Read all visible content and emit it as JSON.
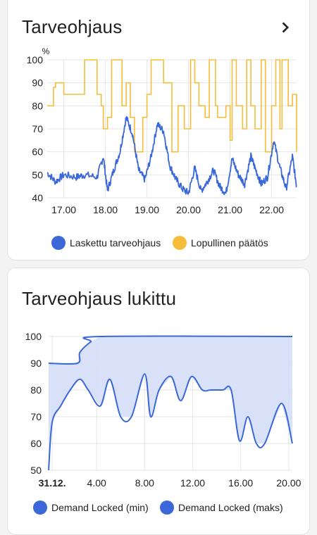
{
  "card1": {
    "title": "Tarveohjaus",
    "legend": [
      {
        "label": "Laskettu tarveohjaus",
        "color": "#3b68d9"
      },
      {
        "label": "Lopullinen päätös",
        "color": "#f5bd3a"
      }
    ]
  },
  "card2": {
    "title": "Tarveohjaus lukittu",
    "legend": [
      {
        "label": "Demand Locked (min)",
        "color": "#3b68d9"
      },
      {
        "label": "Demand Locked (maks)",
        "color": "#3b68d9"
      }
    ]
  },
  "chart_data": [
    {
      "type": "line",
      "title": "Tarveohjaus",
      "ylabel": "%",
      "ylim": [
        40,
        100
      ],
      "yticks": [
        "100",
        "90",
        "80",
        "70",
        "60",
        "50",
        "40"
      ],
      "xticks": [
        "17.00",
        "18.00",
        "19.00",
        "20.00",
        "21.00",
        "22.00"
      ],
      "grid": true,
      "legend_position": "bottom",
      "series": [
        {
          "name": "Laskettu tarveohjaus",
          "color": "#3b68d9",
          "x": [
            16.6,
            16.8,
            17.0,
            17.3,
            17.5,
            17.8,
            17.95,
            18.05,
            18.2,
            18.35,
            18.5,
            18.65,
            18.8,
            18.95,
            19.1,
            19.25,
            19.4,
            19.55,
            19.7,
            19.85,
            20.0,
            20.15,
            20.3,
            20.45,
            20.6,
            20.75,
            20.9,
            21.05,
            21.2,
            21.35,
            21.5,
            21.6,
            21.75,
            21.9,
            22.05,
            22.2,
            22.35,
            22.5,
            22.6
          ],
          "y": [
            51,
            47,
            50,
            49,
            50,
            49,
            58,
            43,
            52,
            60,
            75,
            68,
            52,
            48,
            58,
            72,
            69,
            54,
            48,
            44,
            42,
            53,
            43,
            47,
            52,
            45,
            42,
            57,
            50,
            46,
            58,
            53,
            46,
            49,
            65,
            53,
            44,
            58,
            45
          ]
        },
        {
          "name": "Lopullinen päätös",
          "color": "#f5bd3a",
          "x": [
            16.6,
            16.75,
            16.8,
            16.95,
            17.0,
            17.4,
            17.5,
            17.6,
            17.8,
            17.9,
            17.95,
            18.05,
            18.15,
            18.3,
            18.4,
            18.5,
            18.6,
            18.7,
            18.9,
            19.0,
            19.1,
            19.3,
            19.4,
            19.6,
            19.75,
            19.9,
            20.05,
            20.15,
            20.25,
            20.4,
            20.5,
            20.65,
            20.7,
            20.9,
            21.0,
            21.05,
            21.15,
            21.3,
            21.4,
            21.5,
            21.6,
            21.75,
            21.85,
            22.0,
            22.1,
            22.2,
            22.25,
            22.4,
            22.5,
            22.6
          ],
          "y": [
            80,
            88,
            90,
            90,
            85,
            85,
            100,
            100,
            85,
            80,
            70,
            75,
            100,
            100,
            80,
            90,
            75,
            60,
            75,
            85,
            100,
            100,
            90,
            60,
            80,
            70,
            100,
            90,
            80,
            75,
            100,
            80,
            75,
            80,
            65,
            100,
            80,
            70,
            100,
            80,
            70,
            100,
            60,
            80,
            100,
            70,
            100,
            80,
            85,
            60
          ]
        }
      ]
    },
    {
      "type": "area",
      "title": "Tarveohjaus lukittu",
      "ylim": [
        50,
        100
      ],
      "yticks": [
        "100",
        "90",
        "80",
        "70",
        "60",
        "50"
      ],
      "xticks": [
        "31.12.",
        "4.00",
        "8.00",
        "12.00",
        "16.00",
        "20.00"
      ],
      "grid": true,
      "legend_position": "bottom",
      "series": [
        {
          "name": "Demand Locked (min)",
          "color": "#3b68d9",
          "x": [
            0,
            0.3,
            1,
            1.8,
            2.6,
            3.3,
            4.3,
            5.1,
            6.0,
            6.9,
            8.0,
            8.5,
            9.2,
            10.2,
            11.0,
            11.9,
            12.8,
            13.5,
            14.5,
            15.2,
            15.9,
            16.6,
            17.3,
            18.0,
            19.4,
            20.3
          ],
          "y": [
            50,
            68,
            74,
            80,
            84,
            80,
            74,
            84,
            70,
            70,
            86,
            70,
            80,
            85,
            76,
            85,
            80,
            80,
            80,
            80,
            61,
            70,
            60,
            60,
            75,
            60
          ]
        },
        {
          "name": "Demand Locked (maks)",
          "color": "#3b68d9",
          "x": [
            0,
            2.4,
            2.6,
            3.5,
            4.3,
            20.3
          ],
          "y": [
            90,
            90,
            94,
            98,
            100,
            100
          ]
        }
      ]
    }
  ]
}
